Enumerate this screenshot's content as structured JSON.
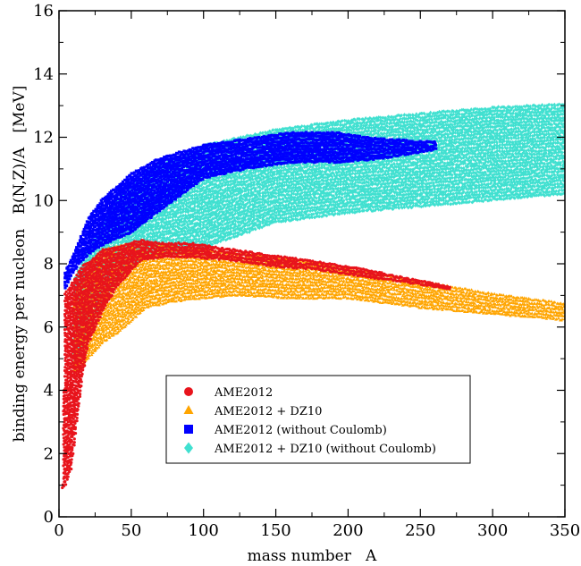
{
  "chart_data": {
    "type": "scatter",
    "title": "",
    "xlabel": "mass number   A",
    "ylabel": "binding energy per nucleon   B(N,Z)/A   [MeV]",
    "xlim": [
      0,
      350
    ],
    "ylim": [
      0,
      16
    ],
    "x_ticks": [
      "0",
      "50",
      "100",
      "150",
      "200",
      "250",
      "300",
      "350"
    ],
    "y_ticks": [
      "0",
      "2",
      "4",
      "6",
      "8",
      "10",
      "12",
      "14",
      "16"
    ],
    "grid": false,
    "legend_position": "bottom-center",
    "series": [
      {
        "name": "AME2012",
        "marker": "circle",
        "color": "#e8141c",
        "x_range": [
          2,
          270
        ],
        "envelope_upper": [
          [
            2,
            1.1
          ],
          [
            4,
            7.1
          ],
          [
            8,
            7.4
          ],
          [
            12,
            7.7
          ],
          [
            16,
            8.0
          ],
          [
            20,
            8.1
          ],
          [
            30,
            8.5
          ],
          [
            40,
            8.6
          ],
          [
            56,
            8.8
          ],
          [
            70,
            8.7
          ],
          [
            90,
            8.7
          ],
          [
            120,
            8.5
          ],
          [
            150,
            8.3
          ],
          [
            180,
            8.1
          ],
          [
            208,
            7.9
          ],
          [
            240,
            7.6
          ],
          [
            270,
            7.3
          ]
        ],
        "envelope_lower": [
          [
            2,
            0.9
          ],
          [
            4,
            1.0
          ],
          [
            8,
            1.5
          ],
          [
            12,
            3.0
          ],
          [
            16,
            4.5
          ],
          [
            20,
            5.5
          ],
          [
            30,
            6.5
          ],
          [
            40,
            7.3
          ],
          [
            56,
            8.1
          ],
          [
            70,
            8.2
          ],
          [
            90,
            8.2
          ],
          [
            120,
            8.1
          ],
          [
            150,
            7.9
          ],
          [
            180,
            7.8
          ],
          [
            208,
            7.6
          ],
          [
            240,
            7.4
          ],
          [
            270,
            7.2
          ]
        ]
      },
      {
        "name": "AME2012 + DZ10",
        "marker": "triangle",
        "color": "#ffa500",
        "x_range": [
          10,
          350
        ],
        "envelope_upper": [
          [
            10,
            7.0
          ],
          [
            20,
            8.0
          ],
          [
            30,
            8.5
          ],
          [
            50,
            8.7
          ],
          [
            80,
            8.6
          ],
          [
            120,
            8.4
          ],
          [
            160,
            8.2
          ],
          [
            200,
            7.9
          ],
          [
            250,
            7.5
          ],
          [
            300,
            7.1
          ],
          [
            350,
            6.8
          ]
        ],
        "envelope_lower": [
          [
            10,
            4.5
          ],
          [
            20,
            5.0
          ],
          [
            30,
            5.5
          ],
          [
            40,
            5.8
          ],
          [
            60,
            6.6
          ],
          [
            80,
            6.8
          ],
          [
            120,
            7.0
          ],
          [
            160,
            6.9
          ],
          [
            200,
            6.9
          ],
          [
            250,
            6.6
          ],
          [
            300,
            6.4
          ],
          [
            350,
            6.2
          ]
        ]
      },
      {
        "name": "AME2012 (without Coulomb)",
        "marker": "square",
        "color": "#0000ff",
        "x_range": [
          4,
          260
        ],
        "envelope_upper": [
          [
            4,
            7.8
          ],
          [
            10,
            8.4
          ],
          [
            20,
            9.5
          ],
          [
            30,
            10.1
          ],
          [
            50,
            10.9
          ],
          [
            70,
            11.4
          ],
          [
            100,
            11.8
          ],
          [
            130,
            12.0
          ],
          [
            160,
            12.2
          ],
          [
            190,
            12.2
          ],
          [
            220,
            12.0
          ],
          [
            260,
            11.9
          ]
        ],
        "envelope_lower": [
          [
            4,
            7.2
          ],
          [
            10,
            7.8
          ],
          [
            20,
            8.3
          ],
          [
            30,
            8.6
          ],
          [
            50,
            9.0
          ],
          [
            70,
            9.7
          ],
          [
            100,
            10.7
          ],
          [
            130,
            11.0
          ],
          [
            160,
            11.2
          ],
          [
            190,
            11.2
          ],
          [
            220,
            11.3
          ],
          [
            260,
            11.6
          ]
        ]
      },
      {
        "name": "AME2012 + DZ10 (without Coulomb)",
        "marker": "diamond",
        "color": "#40e0d0",
        "x_range": [
          10,
          350
        ],
        "envelope_upper": [
          [
            10,
            7.5
          ],
          [
            20,
            8.6
          ],
          [
            40,
            10.2
          ],
          [
            60,
            11.0
          ],
          [
            100,
            11.8
          ],
          [
            150,
            12.3
          ],
          [
            200,
            12.6
          ],
          [
            250,
            12.8
          ],
          [
            300,
            13.0
          ],
          [
            350,
            13.1
          ]
        ],
        "envelope_lower": [
          [
            10,
            4.5
          ],
          [
            20,
            6.0
          ],
          [
            40,
            7.5
          ],
          [
            60,
            8.2
          ],
          [
            100,
            8.5
          ],
          [
            150,
            9.3
          ],
          [
            200,
            9.6
          ],
          [
            250,
            9.8
          ],
          [
            300,
            10.0
          ],
          [
            350,
            10.2
          ]
        ]
      }
    ]
  }
}
